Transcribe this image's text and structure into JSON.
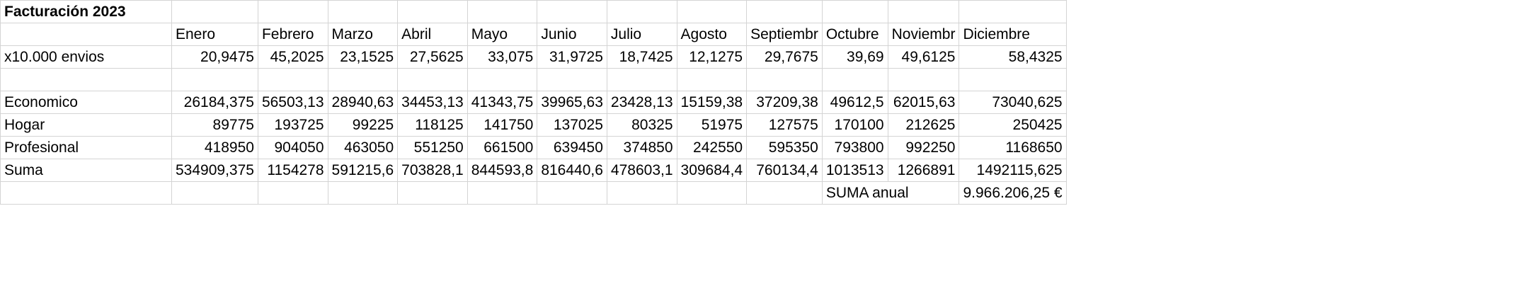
{
  "title": "Facturación 2023",
  "months": [
    "Enero",
    "Febrero",
    "Marzo",
    "Abril",
    "Mayo",
    "Junio",
    "Julio",
    "Agosto",
    "Septiembr",
    "Octubre",
    "Noviembr",
    "Diciembre"
  ],
  "rows": [
    {
      "label": "x10.000 envios",
      "values": [
        "20,9475",
        "45,2025",
        "23,1525",
        "27,5625",
        "33,075",
        "31,9725",
        "18,7425",
        "12,1275",
        "29,7675",
        "39,69",
        "49,6125",
        "58,4325"
      ]
    },
    {
      "label": "Economico",
      "values": [
        "26184,375",
        "56503,13",
        "28940,63",
        "34453,13",
        "41343,75",
        "39965,63",
        "23428,13",
        "15159,38",
        "37209,38",
        "49612,5",
        "62015,63",
        "73040,625"
      ]
    },
    {
      "label": "Hogar",
      "values": [
        "89775",
        "193725",
        "99225",
        "118125",
        "141750",
        "137025",
        "80325",
        "51975",
        "127575",
        "170100",
        "212625",
        "250425"
      ]
    },
    {
      "label": "Profesional",
      "values": [
        "418950",
        "904050",
        "463050",
        "551250",
        "661500",
        "639450",
        "374850",
        "242550",
        "595350",
        "793800",
        "992250",
        "1168650"
      ]
    },
    {
      "label": "Suma",
      "values": [
        "534909,375",
        "1154278",
        "591215,6",
        "703828,1",
        "844593,8",
        "816440,6",
        "478603,1",
        "309684,4",
        "760134,4",
        "1013513",
        "1266891",
        "1492115,625"
      ]
    }
  ],
  "annual": {
    "label": "SUMA anual",
    "value": "9.966.206,25 €"
  }
}
